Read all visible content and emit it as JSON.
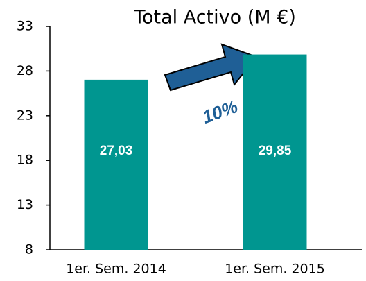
{
  "chart_data": {
    "type": "bar",
    "title": "Total Activo (M €)",
    "categories": [
      "1er. Sem. 2014",
      "1er. Sem. 2015"
    ],
    "values": [
      27.03,
      29.85
    ],
    "value_labels": [
      "27,03",
      "29,85"
    ],
    "color": "#009690",
    "ylim": [
      8,
      33
    ],
    "yticks": [
      8,
      13,
      18,
      23,
      28,
      33
    ],
    "annotations": [
      "10%"
    ]
  }
}
